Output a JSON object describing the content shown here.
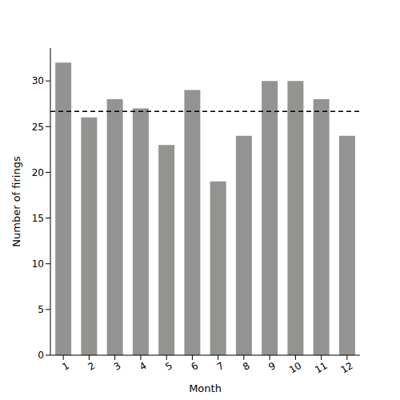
{
  "chart_data": {
    "type": "bar",
    "x_label": "Month",
    "y_label": "Number of firings",
    "categories": [
      "1",
      "2",
      "3",
      "4",
      "5",
      "6",
      "7",
      "8",
      "9",
      "10",
      "11",
      "12"
    ],
    "values": [
      32,
      26,
      28,
      27,
      23,
      29,
      19,
      24,
      30,
      30,
      28,
      24
    ],
    "color": "#939492",
    "mean_line": 26.67,
    "ylim": [
      0,
      33.6
    ],
    "yticks": [
      0,
      5,
      10,
      15,
      20,
      25,
      30
    ],
    "grid": false
  }
}
